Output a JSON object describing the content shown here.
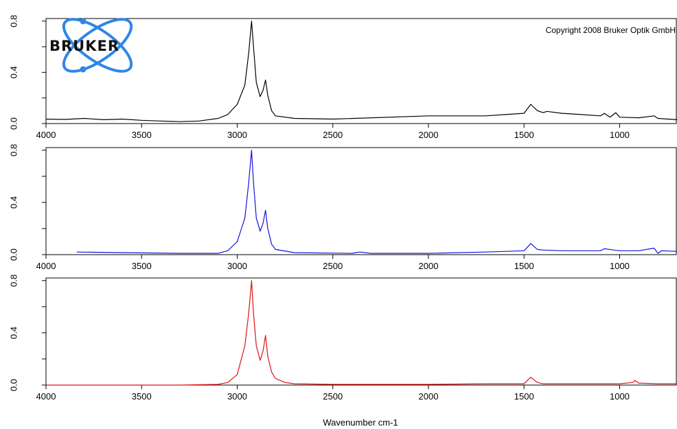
{
  "copyright": "Copyright 2008 Bruker Optik GmbH",
  "logo": {
    "text": "BRUKER",
    "icon": "atom-orbit-logo",
    "color": "#2f86e8"
  },
  "chart_data": {
    "type": "line",
    "xlabel": "Wavenumber cm-1",
    "xlim": [
      4000,
      700
    ],
    "x_ticks": [
      "4000",
      "3500",
      "3000",
      "2500",
      "2000",
      "1500",
      "1000"
    ],
    "y_ticks": [
      "0.0",
      "0.4",
      "0.8"
    ],
    "ylim": [
      0,
      0.82
    ],
    "grid": false,
    "panels": [
      {
        "color": "#000000",
        "points": [
          [
            4000,
            0.035
          ],
          [
            3900,
            0.032
          ],
          [
            3800,
            0.04
          ],
          [
            3700,
            0.03
          ],
          [
            3600,
            0.035
          ],
          [
            3500,
            0.025
          ],
          [
            3400,
            0.02
          ],
          [
            3300,
            0.015
          ],
          [
            3200,
            0.02
          ],
          [
            3100,
            0.04
          ],
          [
            3050,
            0.07
          ],
          [
            3000,
            0.15
          ],
          [
            2960,
            0.3
          ],
          [
            2940,
            0.55
          ],
          [
            2925,
            0.8
          ],
          [
            2915,
            0.6
          ],
          [
            2900,
            0.32
          ],
          [
            2880,
            0.21
          ],
          [
            2865,
            0.26
          ],
          [
            2852,
            0.34
          ],
          [
            2840,
            0.22
          ],
          [
            2820,
            0.1
          ],
          [
            2800,
            0.06
          ],
          [
            2700,
            0.04
          ],
          [
            2500,
            0.035
          ],
          [
            2000,
            0.06
          ],
          [
            1700,
            0.06
          ],
          [
            1600,
            0.07
          ],
          [
            1500,
            0.08
          ],
          [
            1465,
            0.15
          ],
          [
            1430,
            0.1
          ],
          [
            1400,
            0.085
          ],
          [
            1380,
            0.095
          ],
          [
            1300,
            0.08
          ],
          [
            1200,
            0.07
          ],
          [
            1100,
            0.06
          ],
          [
            1080,
            0.08
          ],
          [
            1050,
            0.05
          ],
          [
            1020,
            0.085
          ],
          [
            1000,
            0.05
          ],
          [
            900,
            0.045
          ],
          [
            820,
            0.06
          ],
          [
            800,
            0.04
          ],
          [
            700,
            0.03
          ]
        ]
      },
      {
        "color": "#1010e0",
        "points": [
          [
            3840,
            0.02
          ],
          [
            3600,
            0.015
          ],
          [
            3300,
            0.01
          ],
          [
            3100,
            0.01
          ],
          [
            3050,
            0.03
          ],
          [
            3000,
            0.1
          ],
          [
            2960,
            0.28
          ],
          [
            2940,
            0.55
          ],
          [
            2925,
            0.8
          ],
          [
            2915,
            0.55
          ],
          [
            2900,
            0.28
          ],
          [
            2880,
            0.18
          ],
          [
            2865,
            0.24
          ],
          [
            2852,
            0.34
          ],
          [
            2840,
            0.2
          ],
          [
            2820,
            0.08
          ],
          [
            2800,
            0.04
          ],
          [
            2700,
            0.015
          ],
          [
            2400,
            0.01
          ],
          [
            2360,
            0.02
          ],
          [
            2300,
            0.01
          ],
          [
            2000,
            0.01
          ],
          [
            1700,
            0.02
          ],
          [
            1500,
            0.03
          ],
          [
            1465,
            0.085
          ],
          [
            1430,
            0.04
          ],
          [
            1400,
            0.035
          ],
          [
            1300,
            0.03
          ],
          [
            1100,
            0.03
          ],
          [
            1080,
            0.045
          ],
          [
            1000,
            0.03
          ],
          [
            900,
            0.03
          ],
          [
            820,
            0.05
          ],
          [
            800,
            0.01
          ],
          [
            780,
            0.03
          ],
          [
            700,
            0.025
          ]
        ]
      },
      {
        "color": "#e01010",
        "points": [
          [
            4000,
            0.0
          ],
          [
            3300,
            0.0
          ],
          [
            3100,
            0.005
          ],
          [
            3050,
            0.02
          ],
          [
            3000,
            0.08
          ],
          [
            2960,
            0.3
          ],
          [
            2940,
            0.55
          ],
          [
            2925,
            0.8
          ],
          [
            2915,
            0.55
          ],
          [
            2900,
            0.3
          ],
          [
            2880,
            0.19
          ],
          [
            2865,
            0.26
          ],
          [
            2852,
            0.38
          ],
          [
            2840,
            0.22
          ],
          [
            2820,
            0.1
          ],
          [
            2800,
            0.05
          ],
          [
            2750,
            0.02
          ],
          [
            2700,
            0.01
          ],
          [
            2500,
            0.005
          ],
          [
            2000,
            0.005
          ],
          [
            1700,
            0.01
          ],
          [
            1500,
            0.01
          ],
          [
            1465,
            0.06
          ],
          [
            1430,
            0.02
          ],
          [
            1400,
            0.01
          ],
          [
            1000,
            0.01
          ],
          [
            930,
            0.02
          ],
          [
            920,
            0.035
          ],
          [
            900,
            0.015
          ],
          [
            800,
            0.01
          ],
          [
            700,
            0.01
          ]
        ]
      }
    ]
  }
}
